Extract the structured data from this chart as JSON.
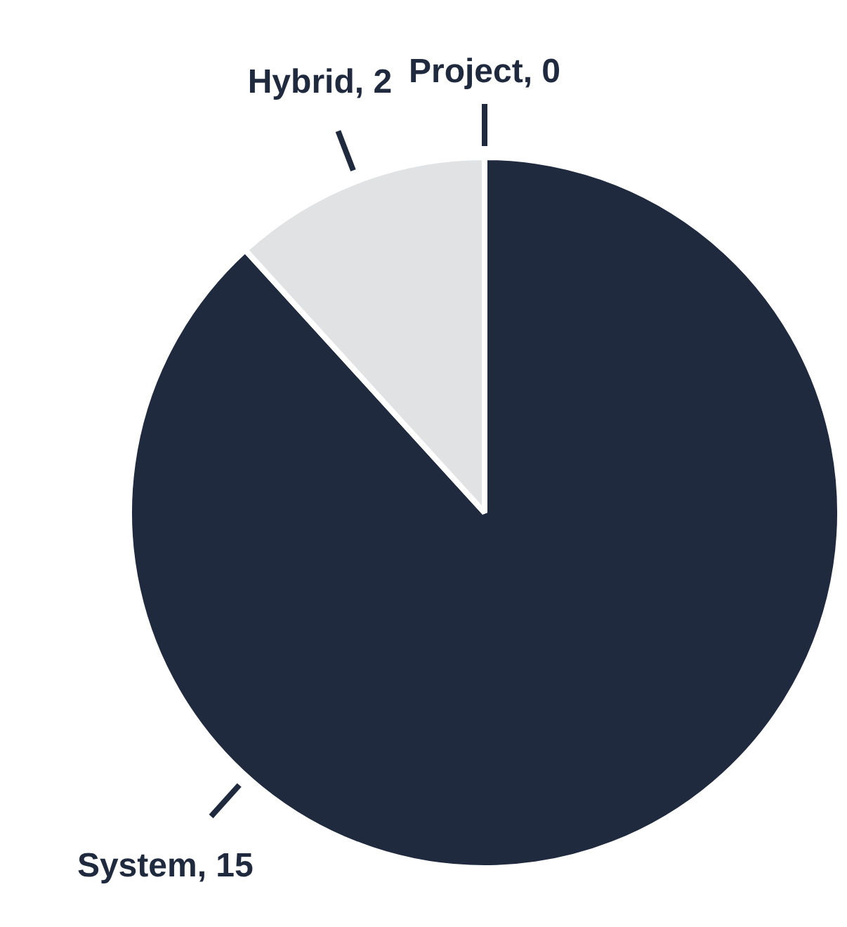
{
  "chart_data": {
    "type": "pie",
    "categories": [
      "Project, 0",
      "System, 15",
      "Hybrid, 2"
    ],
    "values": [
      0,
      15,
      2
    ],
    "colors": [
      "#1f2a3f",
      "#1f2a3f",
      "#e1e2e4"
    ],
    "legend": false
  }
}
